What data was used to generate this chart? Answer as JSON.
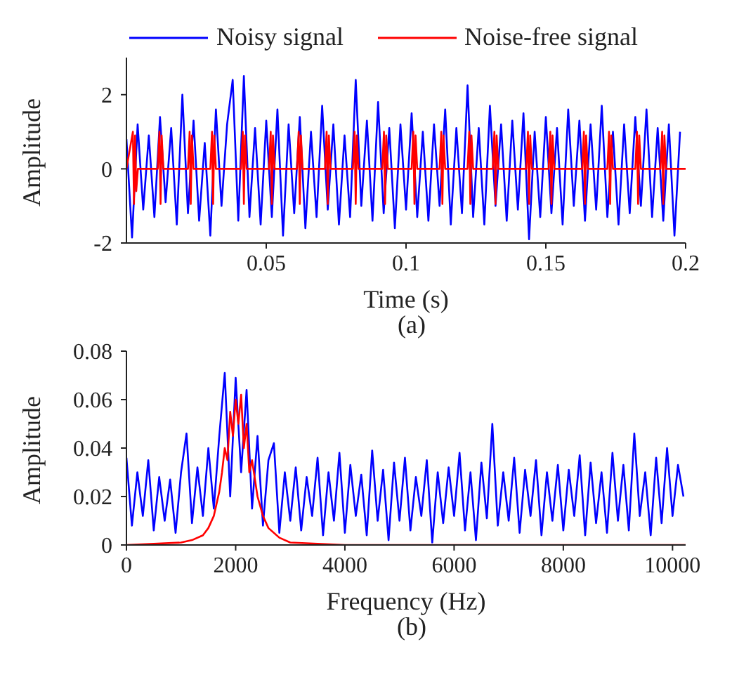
{
  "chart_data": [
    {
      "type": "line",
      "xlabel": "Time (s)",
      "ylabel": "Amplitude",
      "annotations": [
        "(a)"
      ],
      "legend": "top",
      "marker": "none",
      "line_style": "solid",
      "grid": false,
      "xlim": [
        0,
        0.2
      ],
      "xticks": [
        0.05,
        0.1,
        0.15,
        0.2
      ],
      "ylim": [
        -2,
        3
      ],
      "yticks": [
        -2,
        0,
        2
      ],
      "x": [
        0,
        0.002,
        0.004,
        0.006,
        0.008,
        0.01,
        0.012,
        0.014,
        0.016,
        0.018,
        0.02,
        0.022,
        0.024,
        0.026,
        0.028,
        0.03,
        0.032,
        0.034,
        0.036,
        0.038,
        0.04,
        0.042,
        0.044,
        0.046,
        0.048,
        0.05,
        0.052,
        0.054,
        0.056,
        0.058,
        0.06,
        0.062,
        0.064,
        0.066,
        0.068,
        0.07,
        0.072,
        0.074,
        0.076,
        0.078,
        0.08,
        0.082,
        0.084,
        0.086,
        0.088,
        0.09,
        0.092,
        0.094,
        0.096,
        0.098,
        0.1,
        0.102,
        0.104,
        0.106,
        0.108,
        0.11,
        0.112,
        0.114,
        0.116,
        0.118,
        0.12,
        0.122,
        0.124,
        0.126,
        0.128,
        0.13,
        0.132,
        0.134,
        0.136,
        0.138,
        0.14,
        0.142,
        0.144,
        0.146,
        0.148,
        0.15,
        0.152,
        0.154,
        0.156,
        0.158,
        0.16,
        0.162,
        0.164,
        0.166,
        0.168,
        0.17,
        0.172,
        0.174,
        0.176,
        0.178,
        0.18,
        0.182,
        0.184,
        0.186,
        0.188,
        0.19,
        0.192,
        0.194,
        0.196,
        0.198
      ],
      "series": [
        {
          "name": "Noisy signal",
          "color": "#0000ff",
          "values": [
            0.8,
            -1.85,
            1.2,
            -1.1,
            0.9,
            -1.3,
            1.4,
            -0.9,
            1.1,
            -1.5,
            2.0,
            -1.2,
            1.3,
            -1.4,
            0.7,
            -1.8,
            1.6,
            -1.0,
            1.2,
            2.4,
            -1.4,
            2.5,
            -1.3,
            1.1,
            -1.5,
            1.3,
            -1.3,
            1.6,
            -1.8,
            1.2,
            -1.2,
            1.4,
            -1.6,
            1.0,
            -1.3,
            1.7,
            -1.1,
            1.2,
            -1.5,
            0.9,
            -1.3,
            2.4,
            -1.0,
            1.3,
            -1.4,
            1.8,
            -1.2,
            1.1,
            -1.6,
            1.2,
            -1.1,
            1.5,
            -1.3,
            1.0,
            -1.4,
            1.2,
            -1.0,
            1.6,
            -1.5,
            1.1,
            -1.2,
            2.25,
            -1.3,
            1.1,
            -1.5,
            1.7,
            -1.0,
            1.2,
            -1.4,
            1.3,
            -1.1,
            1.5,
            -1.9,
            1.0,
            -1.3,
            1.4,
            -1.2,
            1.1,
            -1.5,
            1.6,
            -1.0,
            1.3,
            -1.4,
            1.2,
            -1.1,
            1.7,
            -1.3,
            1.0,
            -1.5,
            1.2,
            -1.2,
            1.4,
            -1.0,
            1.6,
            -1.3,
            1.1,
            -1.4,
            1.2,
            -1.8,
            1.0
          ]
        },
        {
          "name": "Noise-free signal",
          "color": "#ff0000",
          "x": [
            0,
            0.0023,
            0.0027,
            0.0031,
            0.0035,
            0.0041,
            0.0112,
            0.0118,
            0.0122,
            0.0126,
            0.0132,
            0.022,
            0.0226,
            0.023,
            0.0234,
            0.024,
            0.03,
            0.0306,
            0.031,
            0.0314,
            0.032,
            0.041,
            0.0416,
            0.042,
            0.0424,
            0.043,
            0.051,
            0.0516,
            0.052,
            0.0524,
            0.053,
            0.061,
            0.0616,
            0.062,
            0.0624,
            0.063,
            0.071,
            0.0716,
            0.072,
            0.0724,
            0.073,
            0.081,
            0.0816,
            0.082,
            0.0824,
            0.083,
            0.0915,
            0.0921,
            0.0925,
            0.0929,
            0.0935,
            0.102,
            0.1026,
            0.103,
            0.1034,
            0.104,
            0.112,
            0.1126,
            0.113,
            0.1134,
            0.114,
            0.122,
            0.1226,
            0.123,
            0.1234,
            0.124,
            0.131,
            0.1316,
            0.132,
            0.1324,
            0.133,
            0.143,
            0.1436,
            0.144,
            0.1444,
            0.145,
            0.151,
            0.1516,
            0.152,
            0.1524,
            0.153,
            0.163,
            0.1636,
            0.164,
            0.1644,
            0.165,
            0.172,
            0.1726,
            0.173,
            0.1734,
            0.174,
            0.182,
            0.1826,
            0.183,
            0.1834,
            0.184,
            0.191,
            0.1916,
            0.192,
            0.1924,
            0.193,
            0.2
          ],
          "values": [
            0,
            1,
            -0.95,
            0.9,
            -0.6,
            0,
            0,
            1,
            -0.95,
            0.9,
            0,
            0,
            1,
            -0.95,
            0.9,
            0,
            0,
            1,
            -0.95,
            0.9,
            0,
            0,
            1,
            -0.95,
            0.9,
            0,
            0,
            1,
            -0.95,
            0.9,
            0,
            0,
            1,
            -0.95,
            0.9,
            0,
            0,
            1,
            -0.95,
            0.9,
            0,
            0,
            1,
            -0.95,
            0.9,
            0,
            0,
            1,
            -0.95,
            0.9,
            0,
            0,
            1,
            -0.95,
            0.9,
            0,
            0,
            1,
            -0.95,
            0.9,
            0,
            0,
            1,
            -0.95,
            0.9,
            0,
            0,
            1,
            -0.95,
            0.9,
            0,
            0,
            1,
            -0.95,
            0.9,
            0,
            0,
            1,
            -0.95,
            0.9,
            0,
            0,
            1,
            -0.95,
            0.9,
            0,
            0,
            1,
            -0.95,
            0.9,
            0,
            0,
            1,
            -0.95,
            0.9,
            0,
            0,
            1,
            -0.95,
            0.9,
            0,
            0
          ]
        }
      ]
    },
    {
      "type": "line",
      "xlabel": "Frequency (Hz)",
      "ylabel": "Amplitude",
      "annotations": [
        "(b)"
      ],
      "marker": "none",
      "line_style": "solid",
      "grid": false,
      "xlim": [
        0,
        10240
      ],
      "xticks": [
        0,
        2000,
        4000,
        6000,
        8000,
        10000
      ],
      "ylim": [
        0,
        0.08
      ],
      "yticks": [
        0,
        0.02,
        0.04,
        0.06,
        0.08
      ],
      "x": [
        0,
        100,
        200,
        300,
        400,
        500,
        600,
        700,
        800,
        900,
        1000,
        1100,
        1200,
        1300,
        1400,
        1500,
        1600,
        1700,
        1800,
        1900,
        2000,
        2100,
        2200,
        2300,
        2400,
        2500,
        2600,
        2700,
        2800,
        2900,
        3000,
        3100,
        3200,
        3300,
        3400,
        3500,
        3600,
        3700,
        3800,
        3900,
        4000,
        4100,
        4200,
        4300,
        4400,
        4500,
        4600,
        4700,
        4800,
        4900,
        5000,
        5100,
        5200,
        5300,
        5400,
        5500,
        5600,
        5700,
        5800,
        5900,
        6000,
        6100,
        6200,
        6300,
        6400,
        6500,
        6600,
        6700,
        6800,
        6900,
        7000,
        7100,
        7200,
        7300,
        7400,
        7500,
        7600,
        7700,
        7800,
        7900,
        8000,
        8100,
        8200,
        8300,
        8400,
        8500,
        8600,
        8700,
        8800,
        8900,
        9000,
        9100,
        9200,
        9300,
        9400,
        9500,
        9600,
        9700,
        9800,
        9900,
        10000,
        10100,
        10200
      ],
      "series": [
        {
          "color": "#0000ff",
          "values": [
            0.036,
            0.008,
            0.03,
            0.012,
            0.035,
            0.006,
            0.028,
            0.01,
            0.027,
            0.005,
            0.03,
            0.046,
            0.009,
            0.032,
            0.012,
            0.04,
            0.015,
            0.045,
            0.071,
            0.02,
            0.069,
            0.03,
            0.064,
            0.015,
            0.045,
            0.008,
            0.035,
            0.042,
            0.005,
            0.03,
            0.01,
            0.032,
            0.006,
            0.028,
            0.012,
            0.036,
            0.004,
            0.03,
            0.01,
            0.038,
            0.005,
            0.033,
            0.012,
            0.029,
            0.004,
            0.039,
            0.01,
            0.031,
            0.002,
            0.034,
            0.01,
            0.036,
            0.006,
            0.028,
            0.012,
            0.035,
            0.001,
            0.03,
            0.009,
            0.032,
            0.012,
            0.038,
            0.006,
            0.03,
            0.002,
            0.034,
            0.011,
            0.05,
            0.008,
            0.03,
            0.01,
            0.036,
            0.005,
            0.031,
            0.012,
            0.035,
            0.004,
            0.03,
            0.01,
            0.033,
            0.006,
            0.031,
            0.012,
            0.037,
            0.004,
            0.034,
            0.009,
            0.03,
            0.005,
            0.038,
            0.01,
            0.033,
            0.006,
            0.046,
            0.012,
            0.03,
            0.004,
            0.036,
            0.009,
            0.04,
            0.012,
            0.033,
            0.02
          ]
        },
        {
          "color": "#ff0000",
          "x": [
            0,
            500,
            1000,
            1200,
            1400,
            1500,
            1600,
            1700,
            1750,
            1800,
            1850,
            1900,
            1950,
            2000,
            2050,
            2100,
            2150,
            2200,
            2250,
            2300,
            2400,
            2500,
            2600,
            2800,
            3000,
            3500,
            4000,
            10240
          ],
          "values": [
            0,
            0.0005,
            0.001,
            0.002,
            0.004,
            0.007,
            0.012,
            0.022,
            0.03,
            0.04,
            0.035,
            0.055,
            0.045,
            0.06,
            0.05,
            0.062,
            0.04,
            0.05,
            0.03,
            0.035,
            0.02,
            0.012,
            0.007,
            0.003,
            0.001,
            0.0005,
            0,
            0
          ]
        }
      ]
    }
  ]
}
